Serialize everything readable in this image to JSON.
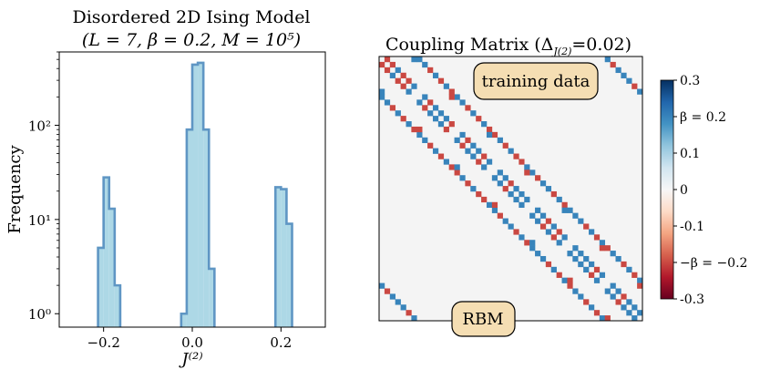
{
  "chart_data": [
    {
      "type": "histogram",
      "title_line1": "Disordered 2D Ising Model",
      "title_line2": "(L = 7, β = 0.2, M = 10⁵)",
      "xlabel": "J⁽²⁾",
      "ylabel": "Frequency",
      "xlim": [
        -0.3,
        0.3
      ],
      "ylim": [
        0.72,
        600
      ],
      "yscale": "log",
      "xticks": [
        -0.2,
        0.0,
        0.2
      ],
      "xtick_labels": [
        "−0.2",
        "0.0",
        "0.2"
      ],
      "yticks": [
        1,
        10,
        100
      ],
      "ytick_labels": [
        "10⁰",
        "10¹",
        "10²"
      ],
      "bin_width": 0.0125,
      "fill_color": "#add8e6",
      "edge_color": "#5f96c4",
      "bins": [
        {
          "x0": -0.2125,
          "x1": -0.2,
          "count": 5
        },
        {
          "x0": -0.2,
          "x1": -0.1875,
          "count": 28
        },
        {
          "x0": -0.1875,
          "x1": -0.175,
          "count": 13
        },
        {
          "x0": -0.175,
          "x1": -0.1625,
          "count": 2
        },
        {
          "x0": -0.025,
          "x1": -0.0125,
          "count": 1
        },
        {
          "x0": -0.0125,
          "x1": 0.0,
          "count": 90
        },
        {
          "x0": 0.0,
          "x1": 0.0125,
          "count": 440
        },
        {
          "x0": 0.0125,
          "x1": 0.025,
          "count": 460
        },
        {
          "x0": 0.025,
          "x1": 0.0375,
          "count": 90
        },
        {
          "x0": 0.0375,
          "x1": 0.05,
          "count": 3
        },
        {
          "x0": 0.1875,
          "x1": 0.2,
          "count": 22
        },
        {
          "x0": 0.2,
          "x1": 0.2125,
          "count": 21
        },
        {
          "x0": 0.2125,
          "x1": 0.225,
          "count": 9
        }
      ]
    },
    {
      "type": "heatmap",
      "title": "Coupling Matrix (Δ",
      "title_subscript": "J(2)",
      "title_suffix": "=0.02)",
      "size": 49,
      "vmin": -0.3,
      "vmax": 0.3,
      "colormap": "RdBu",
      "upper_triangle_label": "training data",
      "lower_triangle_label": "RBM",
      "colorbar_ticks": [
        0.3,
        0.2,
        0.1,
        0.0,
        -0.1,
        -0.2,
        -0.3
      ],
      "colorbar_tick_labels": [
        "0.3",
        "β = 0.2",
        "0.1",
        "0",
        "-0.1",
        "−β = −0.2",
        "-0.3"
      ],
      "annotation_fill": "#f5deb3",
      "couplings": [
        {
          "i": 0,
          "j": 1,
          "v": -0.2
        },
        {
          "i": 0,
          "j": 7,
          "v": 0.2
        },
        {
          "i": 0,
          "j": 42,
          "v": 0.2
        },
        {
          "i": 0,
          "j": 6,
          "v": 0.2
        },
        {
          "i": 1,
          "j": 2,
          "v": -0.2
        },
        {
          "i": 1,
          "j": 8,
          "v": 0.2
        },
        {
          "i": 1,
          "j": 43,
          "v": -0.2
        },
        {
          "i": 2,
          "j": 3,
          "v": 0.2
        },
        {
          "i": 2,
          "j": 9,
          "v": -0.2
        },
        {
          "i": 2,
          "j": 44,
          "v": 0.2
        },
        {
          "i": 3,
          "j": 4,
          "v": -0.2
        },
        {
          "i": 3,
          "j": 10,
          "v": 0.2
        },
        {
          "i": 3,
          "j": 45,
          "v": 0.2
        },
        {
          "i": 4,
          "j": 5,
          "v": -0.2
        },
        {
          "i": 4,
          "j": 11,
          "v": -0.2
        },
        {
          "i": 4,
          "j": 46,
          "v": 0.2
        },
        {
          "i": 5,
          "j": 6,
          "v": 0.2
        },
        {
          "i": 5,
          "j": 12,
          "v": 0.2
        },
        {
          "i": 5,
          "j": 47,
          "v": -0.2
        },
        {
          "i": 6,
          "j": 13,
          "v": -0.2
        },
        {
          "i": 6,
          "j": 48,
          "v": 0.2
        },
        {
          "i": 7,
          "j": 8,
          "v": 0.2
        },
        {
          "i": 7,
          "j": 14,
          "v": 0.2
        },
        {
          "i": 7,
          "j": 13,
          "v": -0.2
        },
        {
          "i": 8,
          "j": 9,
          "v": -0.2
        },
        {
          "i": 8,
          "j": 15,
          "v": 0.2
        },
        {
          "i": 9,
          "j": 10,
          "v": 0.2
        },
        {
          "i": 9,
          "j": 16,
          "v": -0.2
        },
        {
          "i": 10,
          "j": 11,
          "v": 0.2
        },
        {
          "i": 10,
          "j": 17,
          "v": 0.2
        },
        {
          "i": 11,
          "j": 12,
          "v": 0.2
        },
        {
          "i": 11,
          "j": 18,
          "v": -0.2
        },
        {
          "i": 12,
          "j": 13,
          "v": -0.2
        },
        {
          "i": 12,
          "j": 19,
          "v": 0.2
        },
        {
          "i": 13,
          "j": 20,
          "v": -0.2
        },
        {
          "i": 14,
          "j": 15,
          "v": 0.2
        },
        {
          "i": 14,
          "j": 21,
          "v": -0.2
        },
        {
          "i": 14,
          "j": 20,
          "v": 0.2
        },
        {
          "i": 15,
          "j": 16,
          "v": -0.2
        },
        {
          "i": 15,
          "j": 22,
          "v": 0.2
        },
        {
          "i": 16,
          "j": 17,
          "v": 0.2
        },
        {
          "i": 16,
          "j": 23,
          "v": -0.2
        },
        {
          "i": 17,
          "j": 18,
          "v": 0.2
        },
        {
          "i": 17,
          "j": 24,
          "v": 0.2
        },
        {
          "i": 18,
          "j": 19,
          "v": -0.2
        },
        {
          "i": 18,
          "j": 25,
          "v": -0.2
        },
        {
          "i": 19,
          "j": 20,
          "v": 0.2
        },
        {
          "i": 19,
          "j": 26,
          "v": -0.2
        },
        {
          "i": 20,
          "j": 27,
          "v": 0.2
        },
        {
          "i": 21,
          "j": 22,
          "v": 0.2
        },
        {
          "i": 21,
          "j": 28,
          "v": 0.2
        },
        {
          "i": 21,
          "j": 27,
          "v": -0.2
        },
        {
          "i": 22,
          "j": 23,
          "v": 0.2
        },
        {
          "i": 22,
          "j": 29,
          "v": -0.2
        },
        {
          "i": 23,
          "j": 24,
          "v": -0.2
        },
        {
          "i": 23,
          "j": 30,
          "v": 0.2
        },
        {
          "i": 24,
          "j": 25,
          "v": 0.2
        },
        {
          "i": 24,
          "j": 31,
          "v": 0.2
        },
        {
          "i": 25,
          "j": 26,
          "v": 0.2
        },
        {
          "i": 25,
          "j": 32,
          "v": -0.2
        },
        {
          "i": 26,
          "j": 27,
          "v": 0.2
        },
        {
          "i": 26,
          "j": 33,
          "v": 0.2
        },
        {
          "i": 27,
          "j": 34,
          "v": -0.2
        },
        {
          "i": 28,
          "j": 29,
          "v": 0.2
        },
        {
          "i": 28,
          "j": 35,
          "v": 0.2
        },
        {
          "i": 28,
          "j": 34,
          "v": 0.2
        },
        {
          "i": 29,
          "j": 30,
          "v": 0.2
        },
        {
          "i": 29,
          "j": 36,
          "v": 0.2
        },
        {
          "i": 30,
          "j": 31,
          "v": -0.2
        },
        {
          "i": 30,
          "j": 37,
          "v": 0.2
        },
        {
          "i": 31,
          "j": 32,
          "v": 0.2
        },
        {
          "i": 31,
          "j": 38,
          "v": -0.2
        },
        {
          "i": 32,
          "j": 33,
          "v": -0.2
        },
        {
          "i": 32,
          "j": 39,
          "v": 0.2
        },
        {
          "i": 33,
          "j": 34,
          "v": 0.2
        },
        {
          "i": 33,
          "j": 40,
          "v": -0.2
        },
        {
          "i": 34,
          "j": 41,
          "v": 0.2
        },
        {
          "i": 35,
          "j": 36,
          "v": 0.2
        },
        {
          "i": 35,
          "j": 42,
          "v": -0.2
        },
        {
          "i": 35,
          "j": 41,
          "v": -0.2
        },
        {
          "i": 36,
          "j": 37,
          "v": 0.2
        },
        {
          "i": 36,
          "j": 43,
          "v": 0.2
        },
        {
          "i": 37,
          "j": 38,
          "v": 0.2
        },
        {
          "i": 37,
          "j": 44,
          "v": 0.2
        },
        {
          "i": 38,
          "j": 39,
          "v": 0.2
        },
        {
          "i": 38,
          "j": 45,
          "v": -0.2
        },
        {
          "i": 39,
          "j": 40,
          "v": -0.2
        },
        {
          "i": 39,
          "j": 46,
          "v": 0.2
        },
        {
          "i": 40,
          "j": 41,
          "v": 0.2
        },
        {
          "i": 40,
          "j": 47,
          "v": -0.2
        },
        {
          "i": 41,
          "j": 48,
          "v": 0.2
        },
        {
          "i": 42,
          "j": 43,
          "v": 0.2
        },
        {
          "i": 42,
          "j": 48,
          "v": -0.2
        },
        {
          "i": 43,
          "j": 44,
          "v": 0.2
        },
        {
          "i": 44,
          "j": 45,
          "v": -0.2
        },
        {
          "i": 45,
          "j": 46,
          "v": 0.2
        },
        {
          "i": 46,
          "j": 47,
          "v": 0.2
        },
        {
          "i": 47,
          "j": 48,
          "v": 0.2
        }
      ]
    }
  ]
}
